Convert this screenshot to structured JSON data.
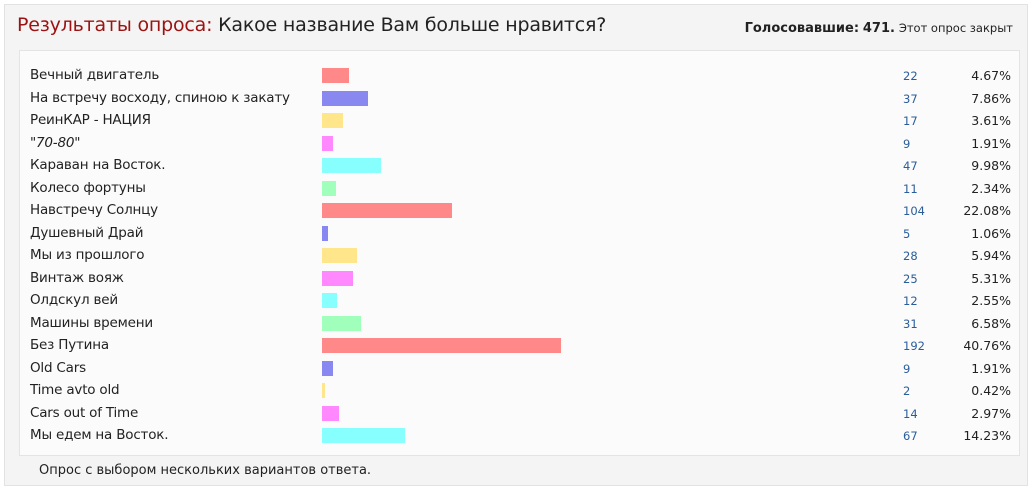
{
  "header": {
    "prefix": "Результаты опроса:",
    "question": "Какое название Вам больше нравится?",
    "votes_label": "Голосовавшие:",
    "votes_count": "471",
    "votes_sep": ".",
    "closed_text": "Этот опрос закрыт"
  },
  "results": [
    {
      "label": "Вечный двигатель",
      "count": "22",
      "percent": "4.67%",
      "value": 4.67,
      "color": "#ff8888",
      "italic": false
    },
    {
      "label": "На встречу восходу, спиною к закату",
      "count": "37",
      "percent": "7.86%",
      "value": 7.86,
      "color": "#8888f0",
      "italic": false
    },
    {
      "label": "РеинКАР - НАЦИЯ",
      "count": "17",
      "percent": "3.61%",
      "value": 3.61,
      "color": "#ffe68a",
      "italic": false
    },
    {
      "label": "\"70-80\"",
      "count": "9",
      "percent": "1.91%",
      "value": 1.91,
      "color": "#ff88ff",
      "italic": true
    },
    {
      "label": "Караван на Восток.",
      "count": "47",
      "percent": "9.98%",
      "value": 9.98,
      "color": "#88ffff",
      "italic": false
    },
    {
      "label": "Колесо фортуны",
      "count": "11",
      "percent": "2.34%",
      "value": 2.34,
      "color": "#a0ffbb",
      "italic": false
    },
    {
      "label": "Навстречу Солнцу",
      "count": "104",
      "percent": "22.08%",
      "value": 22.08,
      "color": "#ff8888",
      "italic": false
    },
    {
      "label": "Душевный Драй",
      "count": "5",
      "percent": "1.06%",
      "value": 1.06,
      "color": "#8888f0",
      "italic": false
    },
    {
      "label": "Мы из прошлого",
      "count": "28",
      "percent": "5.94%",
      "value": 5.94,
      "color": "#ffe68a",
      "italic": false
    },
    {
      "label": "Винтаж вояж",
      "count": "25",
      "percent": "5.31%",
      "value": 5.31,
      "color": "#ff88ff",
      "italic": false
    },
    {
      "label": "Олдскул вей",
      "count": "12",
      "percent": "2.55%",
      "value": 2.55,
      "color": "#88ffff",
      "italic": false
    },
    {
      "label": "Машины времени",
      "count": "31",
      "percent": "6.58%",
      "value": 6.58,
      "color": "#a0ffbb",
      "italic": false
    },
    {
      "label": "Без Путина",
      "count": "192",
      "percent": "40.76%",
      "value": 40.76,
      "color": "#ff8888",
      "italic": false
    },
    {
      "label": "Old Cars",
      "count": "9",
      "percent": "1.91%",
      "value": 1.91,
      "color": "#8888f0",
      "italic": false
    },
    {
      "label": "Time avto old",
      "count": "2",
      "percent": "0.42%",
      "value": 0.42,
      "color": "#ffe68a",
      "italic": false
    },
    {
      "label": "Cars out of Time",
      "count": "14",
      "percent": "2.97%",
      "value": 2.97,
      "color": "#ff88ff",
      "italic": false
    },
    {
      "label": "Мы едем на Восток.",
      "count": "67",
      "percent": "14.23%",
      "value": 14.23,
      "color": "#88ffff",
      "italic": false
    }
  ],
  "footer": {
    "note": "Опрос с выбором нескольких вариантов ответа."
  }
}
